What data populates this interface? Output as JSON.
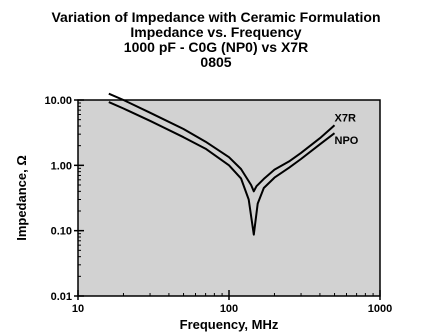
{
  "chart_data": {
    "type": "line",
    "title": "Variation of Impedance with Ceramic Formulation",
    "subtitle_lines": [
      "Impedance vs. Frequency",
      "1000 pF - C0G (NP0) vs X7R",
      "0805"
    ],
    "xlabel": "Frequency, MHz",
    "ylabel": "Impedance, Ω",
    "x_scale": "log",
    "y_scale": "log",
    "xlim": [
      10,
      1000
    ],
    "ylim": [
      0.01,
      10
    ],
    "x_ticks": [
      {
        "value": 10,
        "label": "10"
      },
      {
        "value": 100,
        "label": "100"
      },
      {
        "value": 1000,
        "label": "1000"
      }
    ],
    "y_ticks": [
      {
        "value": 0.01,
        "label": "0.01"
      },
      {
        "value": 0.1,
        "label": "0.10"
      },
      {
        "value": 1,
        "label": "1.00"
      },
      {
        "value": 10,
        "label": "10.00"
      }
    ],
    "grid": false,
    "plot_background": "#d2d2d2",
    "series": [
      {
        "name": "X7R",
        "color": "#000000",
        "points": [
          [
            16,
            12.5
          ],
          [
            20,
            10
          ],
          [
            30,
            6.4
          ],
          [
            50,
            3.6
          ],
          [
            70,
            2.3
          ],
          [
            100,
            1.33
          ],
          [
            120,
            0.88
          ],
          [
            140,
            0.5
          ],
          [
            146,
            0.4
          ],
          [
            152,
            0.48
          ],
          [
            170,
            0.62
          ],
          [
            200,
            0.86
          ],
          [
            250,
            1.15
          ],
          [
            300,
            1.55
          ],
          [
            400,
            2.6
          ],
          [
            500,
            4.1
          ]
        ]
      },
      {
        "name": "NPO",
        "color": "#000000",
        "points": [
          [
            16,
            9.3
          ],
          [
            20,
            7.4
          ],
          [
            30,
            4.8
          ],
          [
            50,
            2.7
          ],
          [
            70,
            1.8
          ],
          [
            100,
            1.0
          ],
          [
            120,
            0.63
          ],
          [
            135,
            0.3
          ],
          [
            146,
            0.087
          ],
          [
            155,
            0.26
          ],
          [
            170,
            0.45
          ],
          [
            200,
            0.65
          ],
          [
            250,
            0.92
          ],
          [
            300,
            1.25
          ],
          [
            400,
            2.1
          ],
          [
            500,
            3.1
          ]
        ]
      }
    ]
  }
}
